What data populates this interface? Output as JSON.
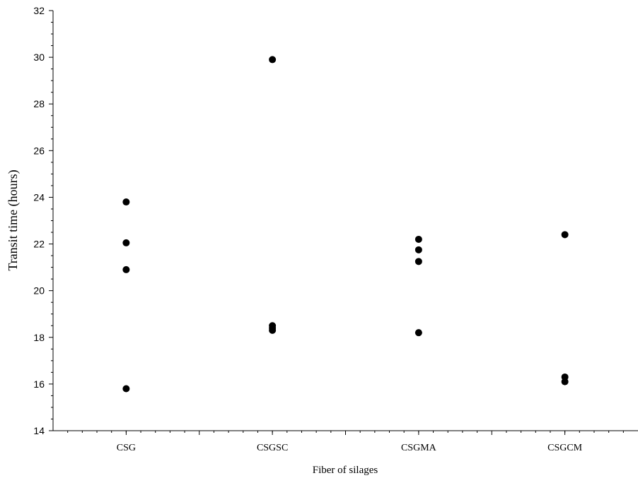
{
  "chart_data": {
    "type": "scatter",
    "title": "",
    "xlabel": "Fiber of silages",
    "ylabel": "Transit time (hours)",
    "categories": [
      "CSG",
      "CSGSC",
      "CSGMA",
      "CSGCM"
    ],
    "ylim": [
      14,
      32
    ],
    "yticks": [
      14,
      16,
      18,
      20,
      22,
      24,
      26,
      28,
      30,
      32
    ],
    "grid": false,
    "points": [
      {
        "category": "CSG",
        "values": [
          23.8,
          22.05,
          20.9,
          15.8
        ]
      },
      {
        "category": "CSGSC",
        "values": [
          29.9,
          18.5,
          18.4,
          18.3
        ]
      },
      {
        "category": "CSGMA",
        "values": [
          22.2,
          21.75,
          21.25,
          18.2
        ]
      },
      {
        "category": "CSGCM",
        "values": [
          22.4,
          16.3,
          16.1
        ]
      }
    ],
    "marker_color": "#000000"
  }
}
